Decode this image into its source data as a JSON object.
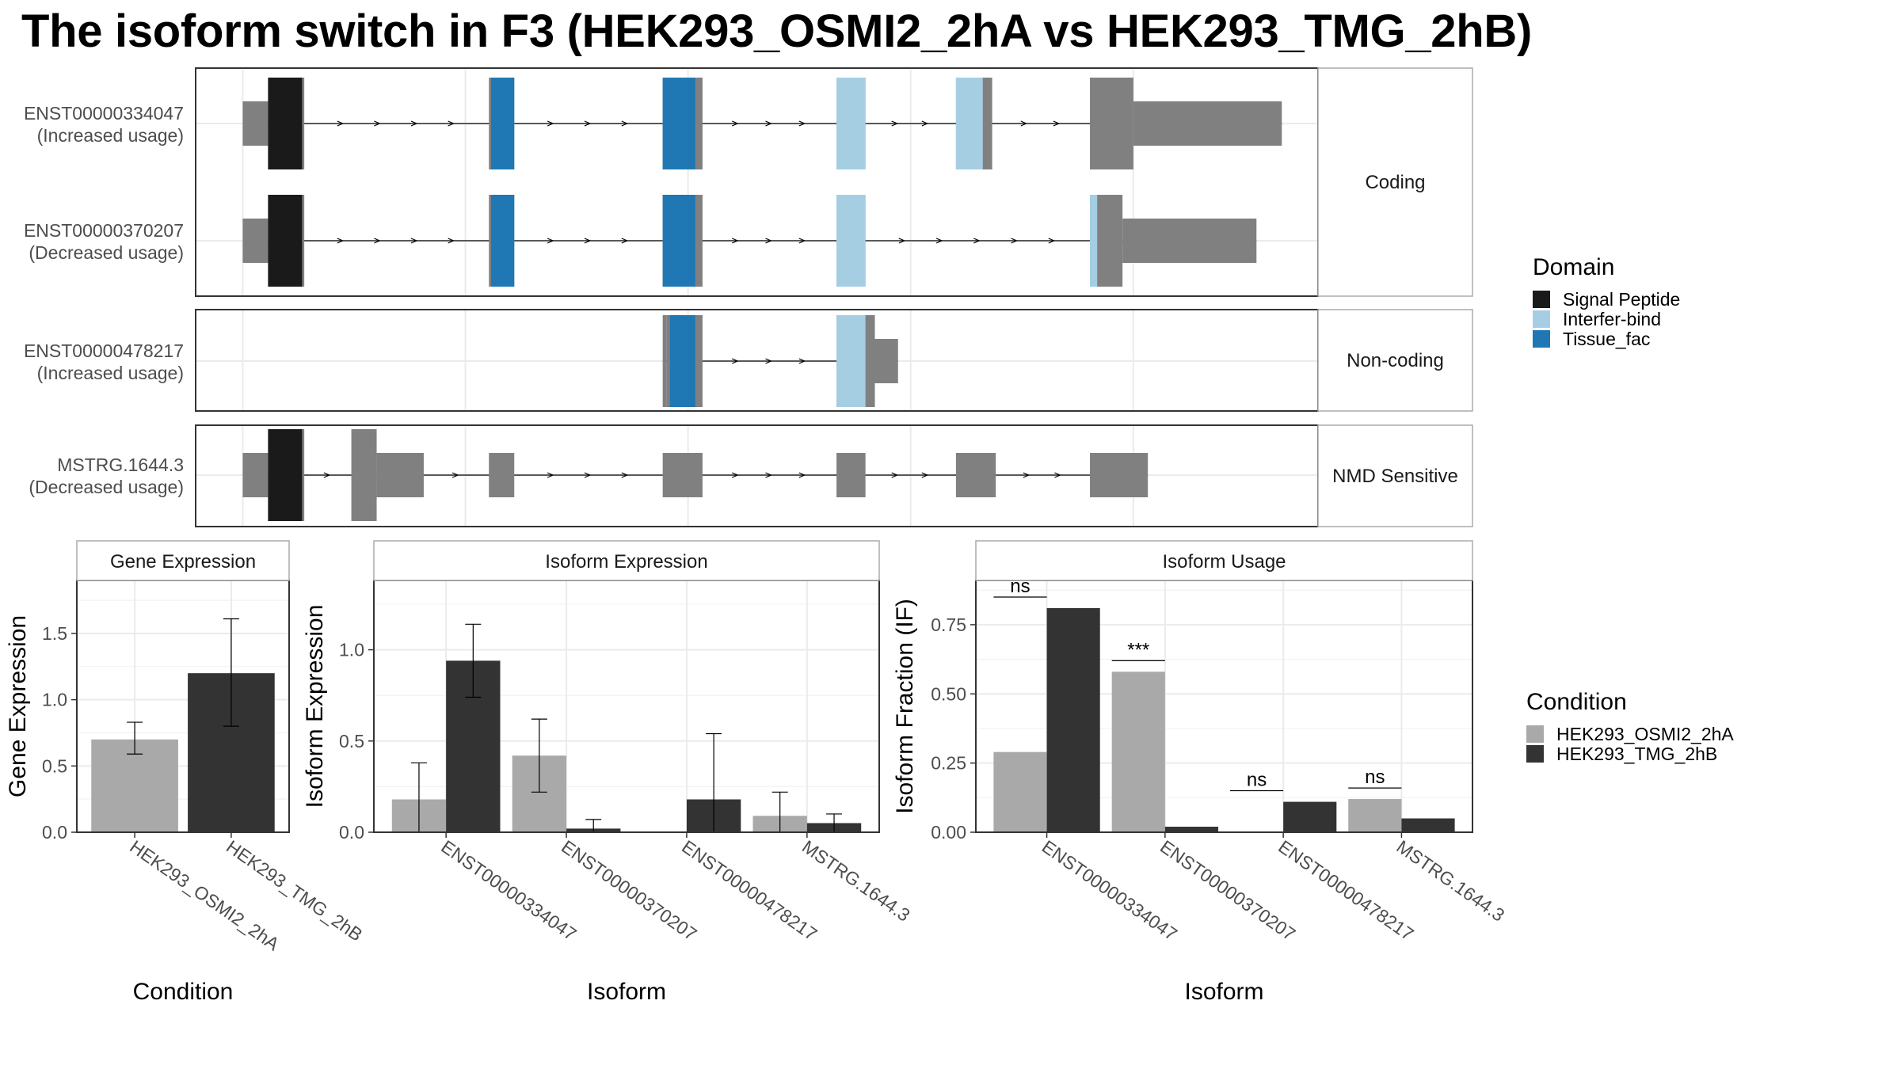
{
  "title": "The isoform switch in F3 (HEK293_OSMI2_2hA vs HEK293_TMG_2hB)",
  "colors": {
    "signal_peptide": "#1a1a1a",
    "interfer_bind": "#a6cee3",
    "tissue_fac": "#1f78b4",
    "exon": "#808080",
    "cond_a": "#a9a9a9",
    "cond_b": "#333333"
  },
  "transcript_panels": [
    {
      "strip": "Coding",
      "transcripts": [
        {
          "id": "ENST00000334047",
          "usage": "(Increased usage)",
          "exons": [
            {
              "x": [
                0.0,
                3.5
              ],
              "h": "utr"
            },
            {
              "x": [
                3.5,
                8.5
              ],
              "h": "cds"
            },
            {
              "x": [
                34.0,
                37.5
              ],
              "h": "cds"
            },
            {
              "x": [
                58.0,
                63.5
              ],
              "h": "cds"
            },
            {
              "x": [
                82.0,
                86.0
              ],
              "h": "cds"
            },
            {
              "x": [
                98.5,
                103.5
              ],
              "h": "cds"
            },
            {
              "x": [
                117.0,
                123.0
              ],
              "h": "cds"
            },
            {
              "x": [
                123.0,
                143.5
              ],
              "h": "utr"
            }
          ],
          "domains": [
            {
              "name": "Signal Peptide",
              "x": [
                3.5,
                8.2
              ]
            },
            {
              "name": "Tissue_fac",
              "x": [
                34.3,
                37.5
              ]
            },
            {
              "name": "Tissue_fac",
              "x": [
                58.0,
                62.5
              ]
            },
            {
              "name": "Interfer-bind",
              "x": [
                82.0,
                86.0
              ]
            },
            {
              "name": "Interfer-bind",
              "x": [
                98.5,
                102.2
              ]
            }
          ]
        },
        {
          "id": "ENST00000370207",
          "usage": "(Decreased usage)",
          "exons": [
            {
              "x": [
                0.0,
                3.5
              ],
              "h": "utr"
            },
            {
              "x": [
                3.5,
                8.5
              ],
              "h": "cds"
            },
            {
              "x": [
                34.0,
                37.5
              ],
              "h": "cds"
            },
            {
              "x": [
                58.0,
                63.5
              ],
              "h": "cds"
            },
            {
              "x": [
                82.0,
                86.0
              ],
              "h": "cds"
            },
            {
              "x": [
                117.0,
                121.5
              ],
              "h": "cds"
            },
            {
              "x": [
                121.5,
                140.0
              ],
              "h": "utr"
            }
          ],
          "domains": [
            {
              "name": "Signal Peptide",
              "x": [
                3.5,
                8.2
              ]
            },
            {
              "name": "Tissue_fac",
              "x": [
                34.3,
                37.5
              ]
            },
            {
              "name": "Tissue_fac",
              "x": [
                58.0,
                62.5
              ]
            },
            {
              "name": "Interfer-bind",
              "x": [
                82.0,
                86.0
              ]
            },
            {
              "name": "Interfer-bind",
              "x": [
                117.0,
                118.0
              ]
            }
          ]
        }
      ]
    },
    {
      "strip": "Non-coding",
      "transcripts": [
        {
          "id": "ENST00000478217",
          "usage": "(Increased usage)",
          "exons": [
            {
              "x": [
                58.0,
                58.5
              ],
              "h": "cds"
            },
            {
              "x": [
                58.5,
                63.5
              ],
              "h": "cds"
            },
            {
              "x": [
                82.0,
                87.3
              ],
              "h": "cds"
            },
            {
              "x": [
                87.3,
                90.5
              ],
              "h": "utr"
            }
          ],
          "domains": [
            {
              "name": "Tissue_fac",
              "x": [
                59.0,
                62.5
              ]
            },
            {
              "name": "Interfer-bind",
              "x": [
                82.0,
                86.0
              ]
            }
          ]
        }
      ]
    },
    {
      "strip": "NMD Sensitive",
      "transcripts": [
        {
          "id": "MSTRG.1644.3",
          "usage": "(Decreased usage)",
          "exons": [
            {
              "x": [
                0.0,
                3.5
              ],
              "h": "utr"
            },
            {
              "x": [
                3.5,
                8.5
              ],
              "h": "cds"
            },
            {
              "x": [
                15.0,
                18.5
              ],
              "h": "cds"
            },
            {
              "x": [
                18.5,
                25.0
              ],
              "h": "utr"
            },
            {
              "x": [
                34.0,
                37.5
              ],
              "h": "utr"
            },
            {
              "x": [
                58.0,
                63.5
              ],
              "h": "utr"
            },
            {
              "x": [
                82.0,
                86.0
              ],
              "h": "utr"
            },
            {
              "x": [
                98.5,
                104.0
              ],
              "h": "utr"
            },
            {
              "x": [
                117.0,
                125.0
              ],
              "h": "utr"
            }
          ],
          "domains": [
            {
              "name": "Signal Peptide",
              "x": [
                3.5,
                8.2
              ]
            }
          ]
        }
      ]
    }
  ],
  "domain_legend": {
    "title": "Domain",
    "items": [
      {
        "name": "Signal Peptide",
        "color": "#1a1a1a"
      },
      {
        "name": "Interfer-bind",
        "color": "#a6cee3"
      },
      {
        "name": "Tissue_fac",
        "color": "#1f78b4"
      }
    ]
  },
  "condition_legend": {
    "title": "Condition",
    "items": [
      {
        "name": "HEK293_OSMI2_2hA",
        "color": "#a9a9a9"
      },
      {
        "name": "HEK293_TMG_2hB",
        "color": "#333333"
      }
    ]
  },
  "chart_data": [
    {
      "type": "bar",
      "title": "Gene Expression",
      "xlabel": "Condition",
      "ylabel": "Gene Expression",
      "ylim": [
        0,
        1.9
      ],
      "yticks": [
        0.0,
        0.5,
        1.0,
        1.5
      ],
      "ytick_labels": [
        "0.0",
        "0.5",
        "1.0",
        "1.5"
      ],
      "categories": [
        "HEK293_OSMI2_2hA",
        "HEK293_TMG_2hB"
      ],
      "values": [
        0.7,
        1.2
      ],
      "err_low": [
        0.59,
        0.8
      ],
      "err_high": [
        0.83,
        1.61
      ]
    },
    {
      "type": "bar",
      "title": "Isoform Expression",
      "xlabel": "Isoform",
      "ylabel": "Isoform Expression",
      "ylim": [
        0,
        1.38
      ],
      "yticks": [
        0.0,
        0.5,
        1.0
      ],
      "ytick_labels": [
        "0.0",
        "0.5",
        "1.0"
      ],
      "categories": [
        "ENST00000334047",
        "ENST00000370207",
        "ENST00000478217",
        "MSTRG.1644.3"
      ],
      "series": [
        {
          "name": "HEK293_OSMI2_2hA",
          "values": [
            0.18,
            0.42,
            0.0,
            0.09
          ],
          "err_low": [
            0.0,
            0.22,
            0.0,
            0.0
          ],
          "err_high": [
            0.38,
            0.62,
            0.0,
            0.22
          ]
        },
        {
          "name": "HEK293_TMG_2hB",
          "values": [
            0.94,
            0.02,
            0.18,
            0.05
          ],
          "err_low": [
            0.74,
            0.0,
            0.0,
            0.0
          ],
          "err_high": [
            1.14,
            0.07,
            0.54,
            0.1
          ]
        }
      ]
    },
    {
      "type": "bar",
      "title": "Isoform Usage",
      "xlabel": "Isoform",
      "ylabel": "Isoform Fraction (IF)",
      "ylim": [
        0,
        0.91
      ],
      "yticks": [
        0.0,
        0.25,
        0.5,
        0.75
      ],
      "ytick_labels": [
        "0.00",
        "0.25",
        "0.50",
        "0.75"
      ],
      "categories": [
        "ENST00000334047",
        "ENST00000370207",
        "ENST00000478217",
        "MSTRG.1644.3"
      ],
      "series": [
        {
          "name": "HEK293_OSMI2_2hA",
          "values": [
            0.29,
            0.58,
            0.0,
            0.12
          ]
        },
        {
          "name": "HEK293_TMG_2hB",
          "values": [
            0.81,
            0.02,
            0.11,
            0.05
          ]
        }
      ],
      "significance": [
        "ns",
        "***",
        "ns",
        "ns"
      ],
      "significance_y": [
        0.85,
        0.62,
        0.15,
        0.16
      ]
    }
  ]
}
